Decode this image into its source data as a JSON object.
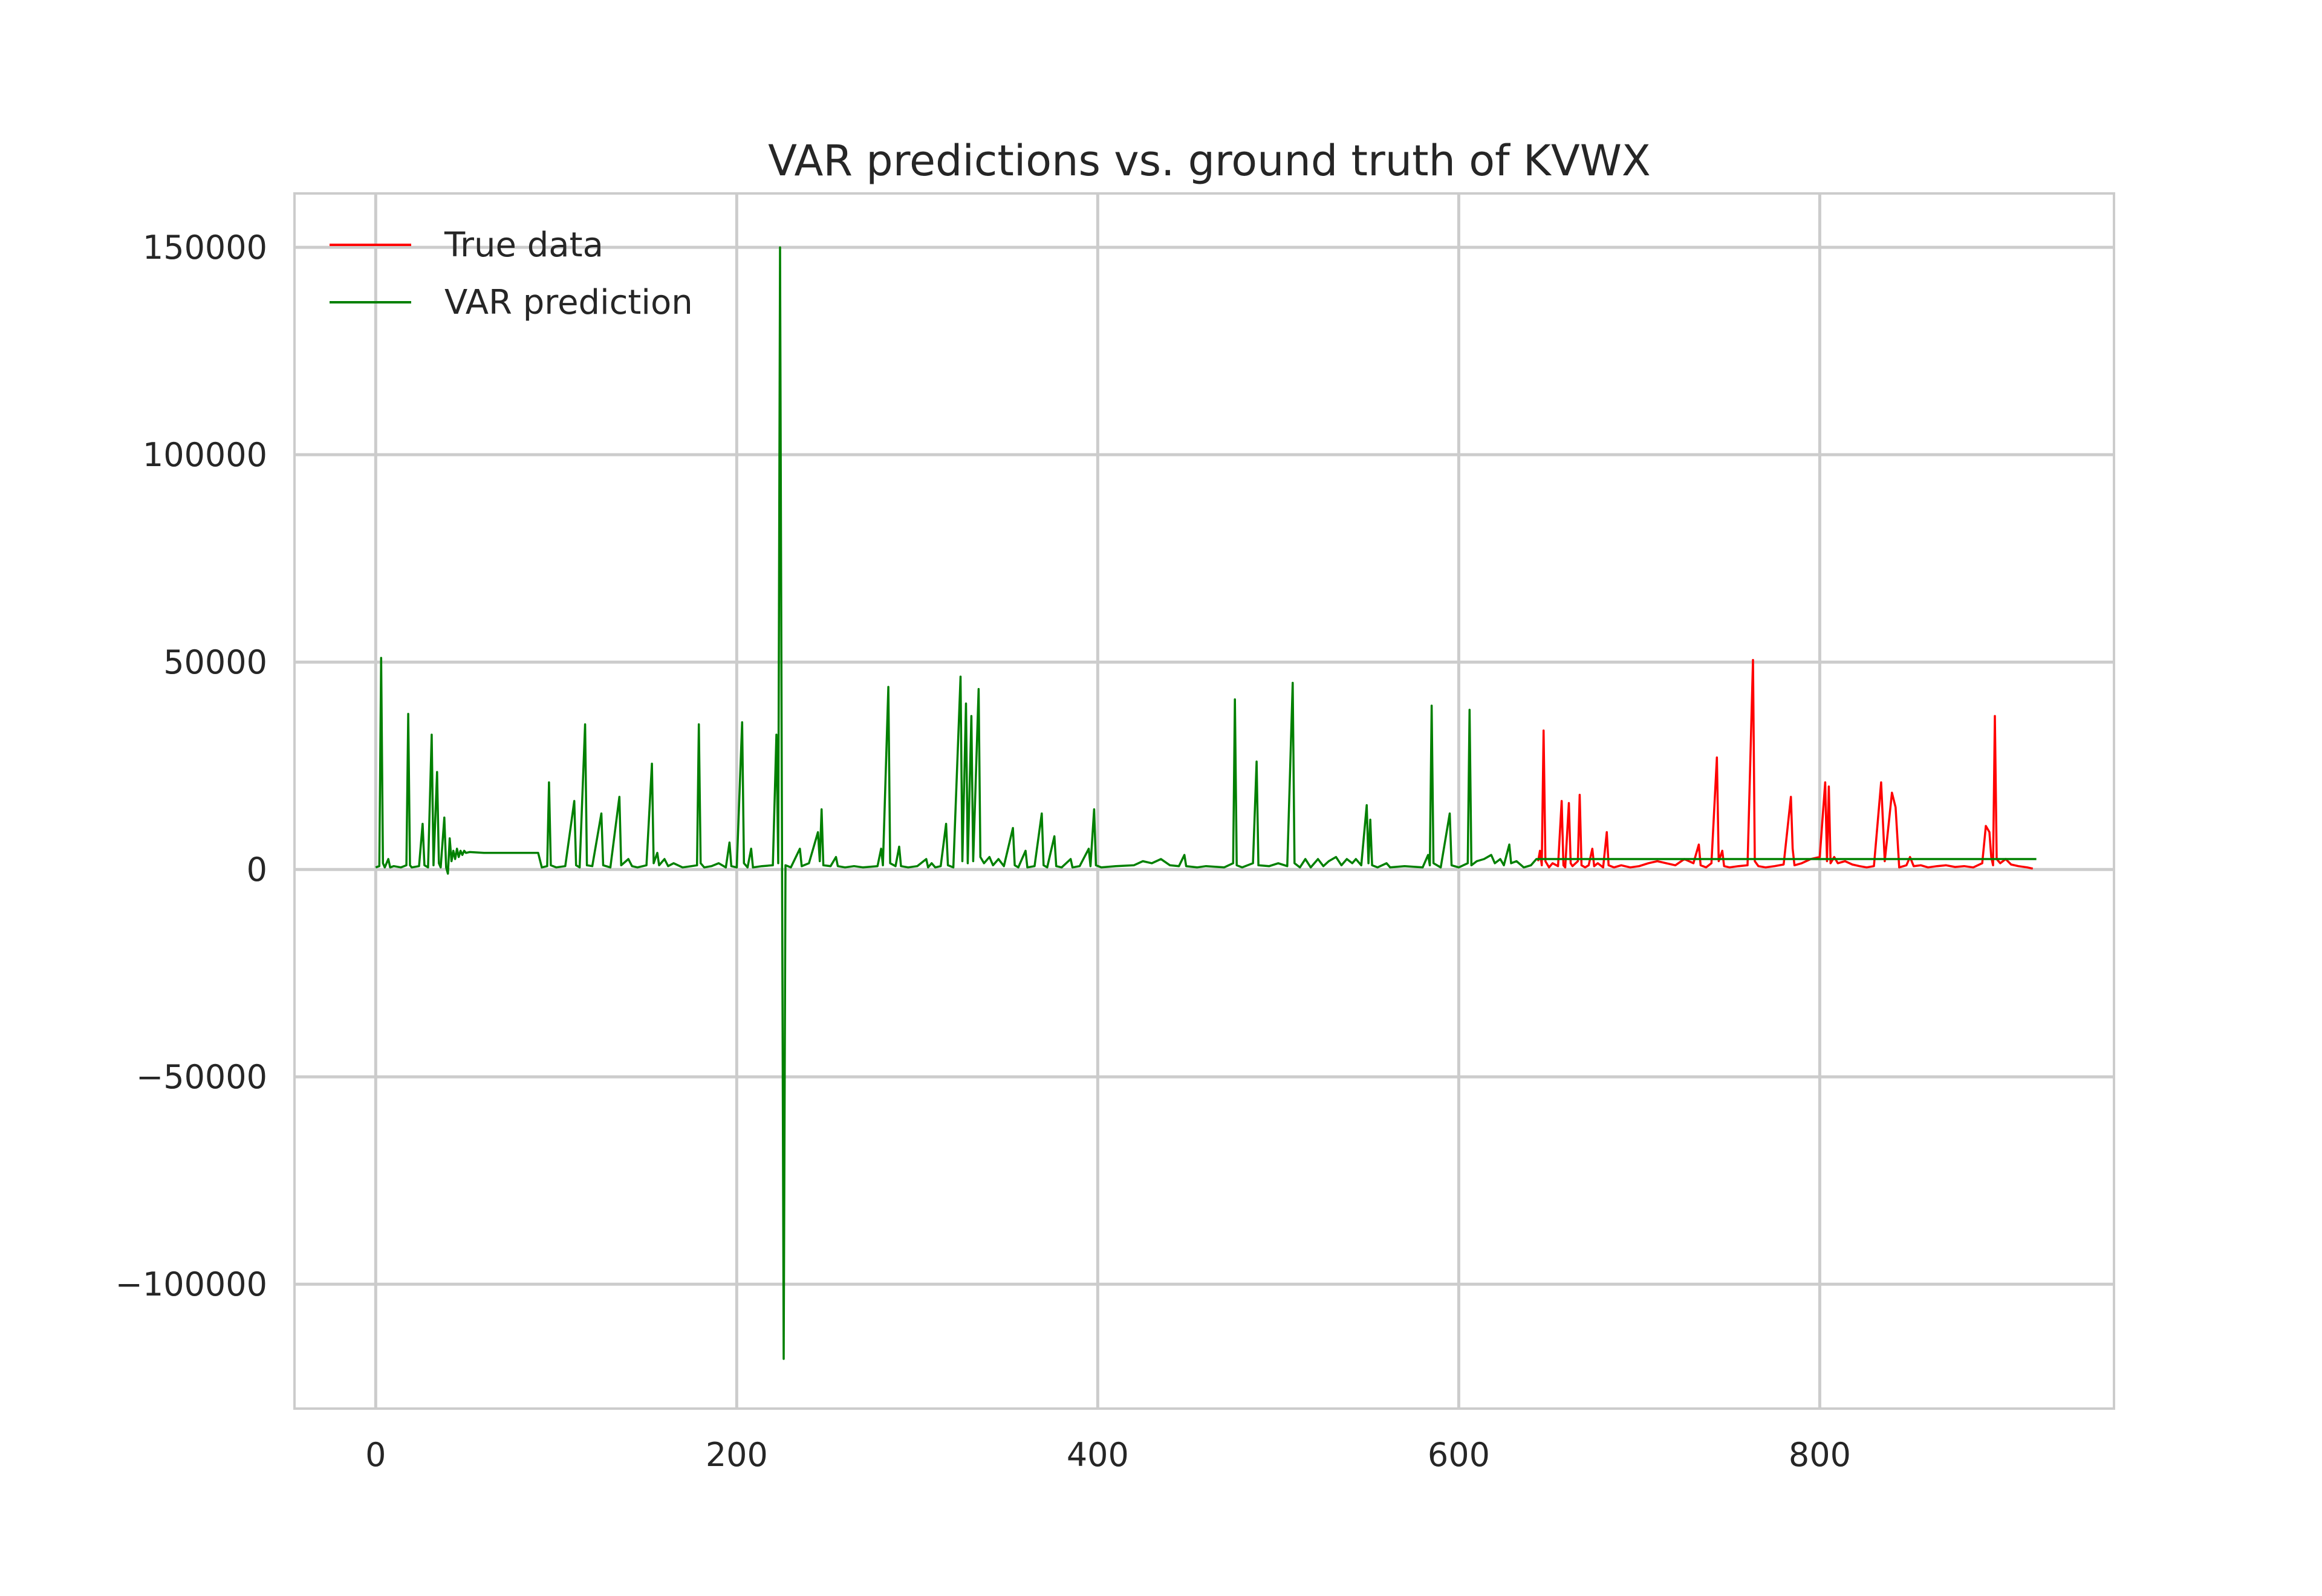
{
  "chart_data": {
    "type": "line",
    "title": "VAR predictions vs. ground truth of KVWX",
    "xlabel": "",
    "ylabel": "",
    "xlim": [
      -45,
      963
    ],
    "ylim": [
      -130000,
      163000
    ],
    "xticks": [
      0,
      200,
      400,
      600,
      800
    ],
    "xtick_labels": [
      "0",
      "200",
      "400",
      "600",
      "800"
    ],
    "yticks": [
      -100000,
      -50000,
      0,
      50000,
      100000,
      150000
    ],
    "ytick_labels": [
      "−100000",
      "−50000",
      "0",
      "50000",
      "100000",
      "150000"
    ],
    "grid": true,
    "legend_position": "top-left",
    "series": [
      {
        "name": "True data",
        "color": "#ff0000",
        "points": [
          [
            644,
            2000
          ],
          [
            645,
            4500
          ],
          [
            646,
            1000
          ],
          [
            647,
            33500
          ],
          [
            648,
            2000
          ],
          [
            650,
            500
          ],
          [
            652,
            1500
          ],
          [
            655,
            800
          ],
          [
            657,
            16500
          ],
          [
            658,
            1000
          ],
          [
            659,
            500
          ],
          [
            661,
            16000
          ],
          [
            662,
            1500
          ],
          [
            663,
            800
          ],
          [
            666,
            2000
          ],
          [
            667,
            18000
          ],
          [
            668,
            1000
          ],
          [
            670,
            500
          ],
          [
            672,
            1000
          ],
          [
            674,
            5000
          ],
          [
            675,
            800
          ],
          [
            677,
            1500
          ],
          [
            680,
            500
          ],
          [
            682,
            9000
          ],
          [
            683,
            1000
          ],
          [
            686,
            500
          ],
          [
            690,
            1000
          ],
          [
            695,
            500
          ],
          [
            700,
            800
          ],
          [
            705,
            1500
          ],
          [
            710,
            2000
          ],
          [
            715,
            1500
          ],
          [
            720,
            1000
          ],
          [
            725,
            2500
          ],
          [
            730,
            1500
          ],
          [
            733,
            6000
          ],
          [
            734,
            1000
          ],
          [
            737,
            500
          ],
          [
            740,
            1500
          ],
          [
            743,
            27000
          ],
          [
            744,
            2000
          ],
          [
            746,
            4500
          ],
          [
            747,
            800
          ],
          [
            750,
            500
          ],
          [
            755,
            800
          ],
          [
            760,
            1000
          ],
          [
            763,
            50500
          ],
          [
            764,
            2000
          ],
          [
            766,
            800
          ],
          [
            770,
            500
          ],
          [
            775,
            800
          ],
          [
            780,
            1200
          ],
          [
            784,
            17500
          ],
          [
            785,
            5000
          ],
          [
            786,
            1000
          ],
          [
            790,
            1500
          ],
          [
            795,
            2500
          ],
          [
            800,
            3000
          ],
          [
            803,
            21000
          ],
          [
            804,
            2000
          ],
          [
            805,
            20000
          ],
          [
            806,
            1500
          ],
          [
            808,
            3000
          ],
          [
            810,
            1500
          ],
          [
            814,
            2000
          ],
          [
            818,
            1200
          ],
          [
            822,
            800
          ],
          [
            826,
            500
          ],
          [
            830,
            800
          ],
          [
            834,
            21000
          ],
          [
            836,
            2000
          ],
          [
            840,
            18500
          ],
          [
            842,
            15000
          ],
          [
            844,
            500
          ],
          [
            848,
            1000
          ],
          [
            850,
            3000
          ],
          [
            852,
            800
          ],
          [
            856,
            1000
          ],
          [
            860,
            500
          ],
          [
            865,
            800
          ],
          [
            870,
            1000
          ],
          [
            875,
            600
          ],
          [
            880,
            800
          ],
          [
            885,
            500
          ],
          [
            890,
            1500
          ],
          [
            892,
            10500
          ],
          [
            894,
            9000
          ],
          [
            895,
            3000
          ],
          [
            896,
            1000
          ],
          [
            897,
            37000
          ],
          [
            898,
            2500
          ],
          [
            900,
            1500
          ],
          [
            903,
            2500
          ],
          [
            906,
            1200
          ],
          [
            910,
            800
          ],
          [
            915,
            500
          ],
          [
            918,
            200
          ]
        ]
      },
      {
        "name": "VAR prediction",
        "color": "#008000",
        "points": [
          [
            0,
            500
          ],
          [
            2,
            800
          ],
          [
            3,
            51000
          ],
          [
            4,
            1500
          ],
          [
            5,
            500
          ],
          [
            7,
            2500
          ],
          [
            8,
            500
          ],
          [
            10,
            800
          ],
          [
            14,
            500
          ],
          [
            17,
            1000
          ],
          [
            18,
            37500
          ],
          [
            19,
            1000
          ],
          [
            20,
            500
          ],
          [
            24,
            800
          ],
          [
            26,
            11000
          ],
          [
            27,
            1000
          ],
          [
            29,
            500
          ],
          [
            31,
            32500
          ],
          [
            32,
            1000
          ],
          [
            34,
            23500
          ],
          [
            35,
            1500
          ],
          [
            36,
            500
          ],
          [
            38,
            12500
          ],
          [
            39,
            500
          ],
          [
            40,
            -1000
          ],
          [
            41,
            7500
          ],
          [
            42,
            2000
          ],
          [
            43,
            4500
          ],
          [
            44,
            2500
          ],
          [
            45,
            5000
          ],
          [
            46,
            3000
          ],
          [
            47,
            4500
          ],
          [
            48,
            3500
          ],
          [
            49,
            4500
          ],
          [
            50,
            4000
          ],
          [
            52,
            4200
          ],
          [
            60,
            4000
          ],
          [
            80,
            4000
          ],
          [
            90,
            4000
          ],
          [
            92,
            500
          ],
          [
            95,
            800
          ],
          [
            96,
            21000
          ],
          [
            97,
            1000
          ],
          [
            100,
            500
          ],
          [
            105,
            800
          ],
          [
            110,
            16500
          ],
          [
            111,
            1000
          ],
          [
            113,
            500
          ],
          [
            116,
            35000
          ],
          [
            117,
            1000
          ],
          [
            120,
            800
          ],
          [
            125,
            13500
          ],
          [
            126,
            1000
          ],
          [
            130,
            500
          ],
          [
            135,
            17500
          ],
          [
            136,
            1000
          ],
          [
            140,
            2500
          ],
          [
            142,
            800
          ],
          [
            145,
            500
          ],
          [
            150,
            1000
          ],
          [
            153,
            25500
          ],
          [
            154,
            1500
          ],
          [
            156,
            4000
          ],
          [
            157,
            1000
          ],
          [
            160,
            2500
          ],
          [
            162,
            800
          ],
          [
            165,
            1500
          ],
          [
            170,
            500
          ],
          [
            175,
            800
          ],
          [
            178,
            1000
          ],
          [
            179,
            35000
          ],
          [
            180,
            1500
          ],
          [
            182,
            500
          ],
          [
            186,
            800
          ],
          [
            190,
            1500
          ],
          [
            194,
            500
          ],
          [
            196,
            6500
          ],
          [
            197,
            800
          ],
          [
            200,
            500
          ],
          [
            203,
            35500
          ],
          [
            204,
            1500
          ],
          [
            206,
            500
          ],
          [
            208,
            5000
          ],
          [
            209,
            500
          ],
          [
            214,
            800
          ],
          [
            220,
            1000
          ],
          [
            222,
            32500
          ],
          [
            223,
            1500
          ],
          [
            224,
            150000
          ],
          [
            226,
            -118000
          ],
          [
            227,
            1000
          ],
          [
            230,
            500
          ],
          [
            235,
            5000
          ],
          [
            236,
            800
          ],
          [
            240,
            1500
          ],
          [
            245,
            9000
          ],
          [
            246,
            2000
          ],
          [
            247,
            14500
          ],
          [
            248,
            1000
          ],
          [
            252,
            800
          ],
          [
            255,
            3000
          ],
          [
            256,
            800
          ],
          [
            260,
            500
          ],
          [
            265,
            800
          ],
          [
            270,
            500
          ],
          [
            278,
            800
          ],
          [
            280,
            5000
          ],
          [
            281,
            1000
          ],
          [
            284,
            44000
          ],
          [
            285,
            1500
          ],
          [
            288,
            800
          ],
          [
            290,
            5500
          ],
          [
            291,
            800
          ],
          [
            295,
            500
          ],
          [
            300,
            800
          ],
          [
            305,
            2500
          ],
          [
            306,
            500
          ],
          [
            308,
            1500
          ],
          [
            310,
            500
          ],
          [
            313,
            800
          ],
          [
            316,
            11000
          ],
          [
            317,
            1000
          ],
          [
            320,
            500
          ],
          [
            324,
            46500
          ],
          [
            325,
            2000
          ],
          [
            327,
            40000
          ],
          [
            328,
            1500
          ],
          [
            330,
            37000
          ],
          [
            331,
            2000
          ],
          [
            334,
            43500
          ],
          [
            335,
            3000
          ],
          [
            337,
            1500
          ],
          [
            340,
            3000
          ],
          [
            342,
            1000
          ],
          [
            345,
            2500
          ],
          [
            348,
            800
          ],
          [
            353,
            10000
          ],
          [
            354,
            1000
          ],
          [
            356,
            500
          ],
          [
            360,
            4500
          ],
          [
            361,
            500
          ],
          [
            365,
            800
          ],
          [
            369,
            13500
          ],
          [
            370,
            1000
          ],
          [
            372,
            500
          ],
          [
            376,
            8000
          ],
          [
            377,
            800
          ],
          [
            380,
            500
          ],
          [
            385,
            2500
          ],
          [
            386,
            500
          ],
          [
            390,
            800
          ],
          [
            395,
            5000
          ],
          [
            396,
            800
          ],
          [
            398,
            14500
          ],
          [
            399,
            1000
          ],
          [
            402,
            500
          ],
          [
            410,
            800
          ],
          [
            420,
            1000
          ],
          [
            425,
            2000
          ],
          [
            430,
            1500
          ],
          [
            435,
            2500
          ],
          [
            440,
            1000
          ],
          [
            445,
            800
          ],
          [
            448,
            3500
          ],
          [
            449,
            800
          ],
          [
            455,
            500
          ],
          [
            460,
            800
          ],
          [
            470,
            500
          ],
          [
            475,
            1500
          ],
          [
            476,
            41000
          ],
          [
            477,
            1000
          ],
          [
            480,
            500
          ],
          [
            486,
            1500
          ],
          [
            488,
            26000
          ],
          [
            489,
            1000
          ],
          [
            495,
            800
          ],
          [
            500,
            1500
          ],
          [
            505,
            800
          ],
          [
            508,
            45000
          ],
          [
            509,
            1500
          ],
          [
            512,
            500
          ],
          [
            515,
            2500
          ],
          [
            518,
            500
          ],
          [
            522,
            2500
          ],
          [
            525,
            800
          ],
          [
            528,
            2000
          ],
          [
            532,
            3000
          ],
          [
            535,
            1000
          ],
          [
            538,
            2500
          ],
          [
            541,
            1500
          ],
          [
            543,
            2500
          ],
          [
            546,
            1000
          ],
          [
            549,
            15500
          ],
          [
            550,
            1500
          ],
          [
            551,
            12000
          ],
          [
            552,
            1000
          ],
          [
            555,
            500
          ],
          [
            560,
            1500
          ],
          [
            562,
            500
          ],
          [
            570,
            800
          ],
          [
            580,
            500
          ],
          [
            583,
            3500
          ],
          [
            584,
            1000
          ],
          [
            585,
            39500
          ],
          [
            586,
            1500
          ],
          [
            590,
            500
          ],
          [
            595,
            13500
          ],
          [
            596,
            1000
          ],
          [
            600,
            500
          ],
          [
            605,
            1500
          ],
          [
            606,
            38500
          ],
          [
            607,
            1000
          ],
          [
            610,
            2000
          ],
          [
            614,
            2500
          ],
          [
            618,
            3500
          ],
          [
            620,
            1500
          ],
          [
            623,
            2500
          ],
          [
            625,
            1000
          ],
          [
            628,
            6000
          ],
          [
            629,
            1500
          ],
          [
            632,
            2000
          ],
          [
            636,
            500
          ],
          [
            640,
            1000
          ],
          [
            643,
            2500
          ],
          [
            920,
            2500
          ]
        ]
      }
    ]
  }
}
